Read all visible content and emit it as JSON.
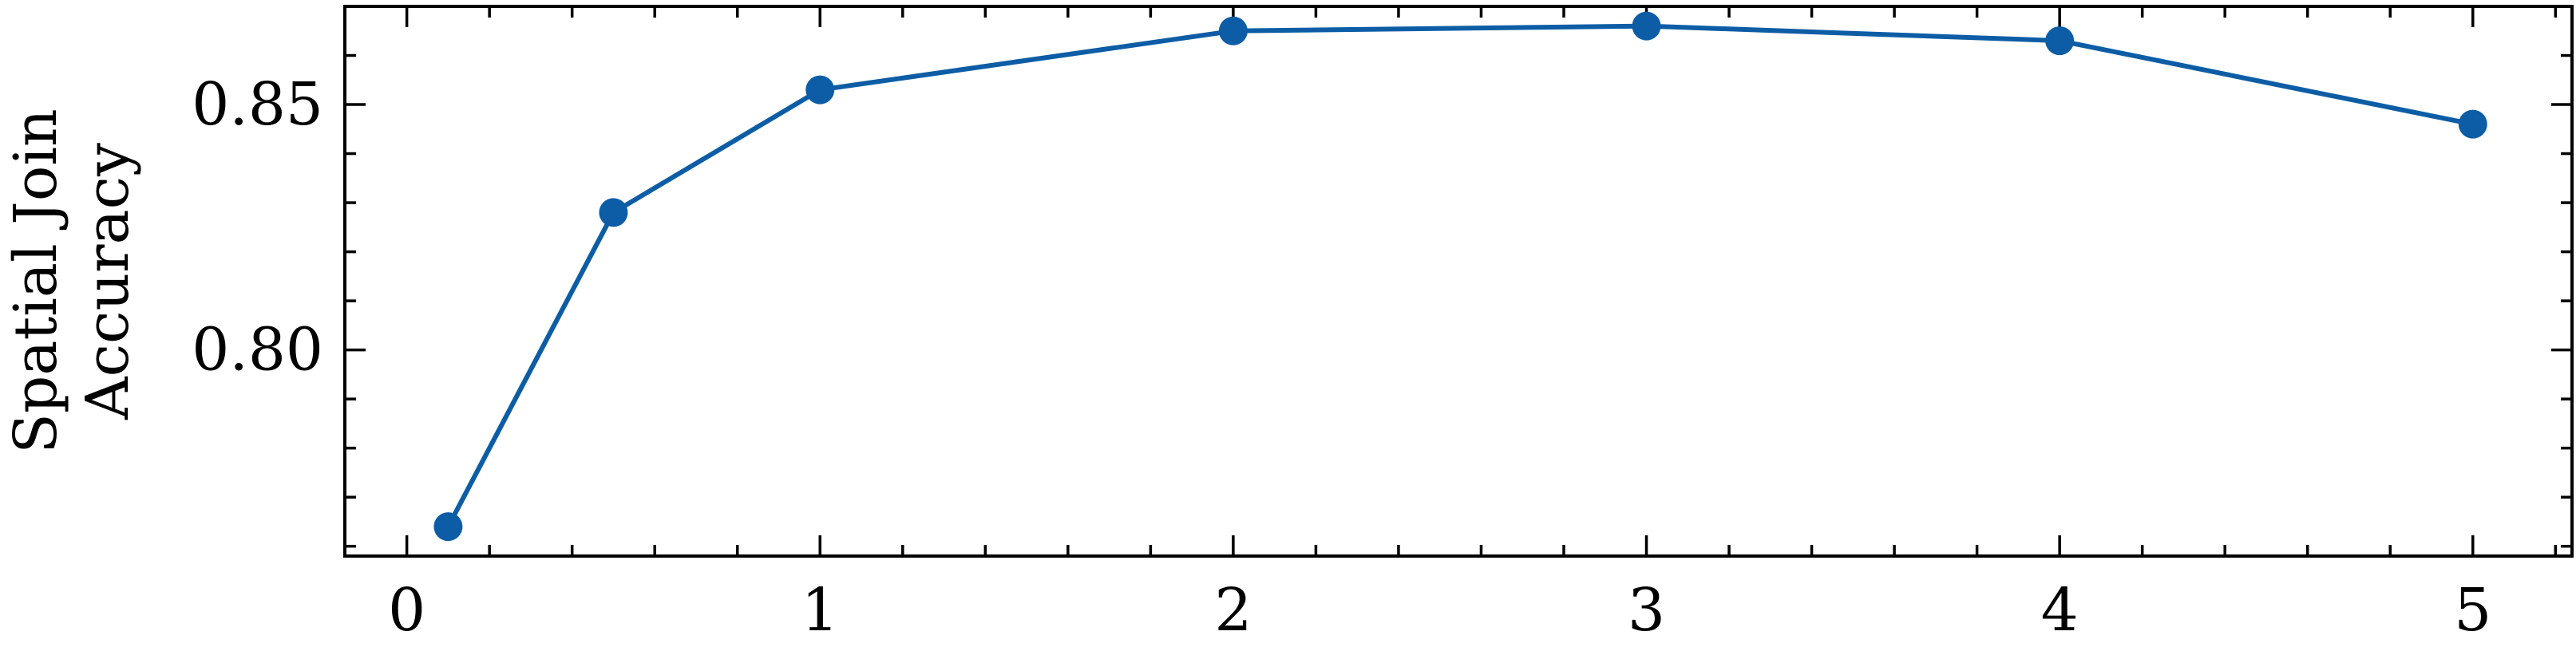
{
  "chart_data": {
    "type": "line",
    "title": "",
    "xlabel": "",
    "ylabel_lines": [
      "Spatial Join",
      "Accuracy"
    ],
    "xlim": [
      -0.15,
      5.24
    ],
    "ylim": [
      0.758,
      0.87
    ],
    "x_ticks": [
      0,
      1,
      2,
      3,
      4,
      5
    ],
    "x_tick_labels": [
      "0",
      "1",
      "2",
      "3",
      "4",
      "5"
    ],
    "x_minor_step": 0.2,
    "y_ticks": [
      0.8,
      0.85
    ],
    "y_tick_labels": [
      "0.80",
      "0.85"
    ],
    "y_minor_step": 0.01,
    "grid": false,
    "legend": "none",
    "series": [
      {
        "color": "#0C5DA5",
        "x": [
          0.1,
          0.5,
          1,
          2,
          3,
          4,
          5
        ],
        "y": [
          0.764,
          0.828,
          0.853,
          0.865,
          0.866,
          0.863,
          0.846
        ]
      }
    ]
  }
}
